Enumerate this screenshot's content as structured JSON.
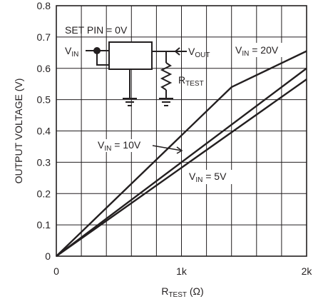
{
  "chart_data": {
    "type": "line",
    "title": "",
    "xlabel": {
      "main": "R",
      "sub": "TEST",
      "unit": " (Ω)"
    },
    "ylabel": "OUTPUT VOLTAGE (V)",
    "xlim": [
      0,
      2000
    ],
    "ylim": [
      0,
      0.8
    ],
    "grid": true,
    "x_ticks": [
      {
        "value": 0,
        "label": "0"
      },
      {
        "value": 1000,
        "label": "1k"
      },
      {
        "value": 2000,
        "label": "2k"
      }
    ],
    "y_ticks": [
      {
        "value": 0,
        "label": "0"
      },
      {
        "value": 0.1,
        "label": "0.1"
      },
      {
        "value": 0.2,
        "label": "0.2"
      },
      {
        "value": 0.3,
        "label": "0.3"
      },
      {
        "value": 0.4,
        "label": "0.4"
      },
      {
        "value": 0.5,
        "label": "0.5"
      },
      {
        "value": 0.6,
        "label": "0.6"
      },
      {
        "value": 0.7,
        "label": "0.7"
      },
      {
        "value": 0.8,
        "label": "0.8"
      }
    ],
    "series": [
      {
        "id": "vin20",
        "x": [
          0,
          1400,
          2000
        ],
        "y": [
          0,
          0.54,
          0.655
        ]
      },
      {
        "id": "vin10",
        "x": [
          0,
          2000
        ],
        "y": [
          0,
          0.6
        ]
      },
      {
        "id": "vin5",
        "x": [
          0,
          2000
        ],
        "y": [
          0,
          0.565
        ]
      }
    ],
    "annotations": {
      "vin20": {
        "pre": "V",
        "sub": "IN",
        "post": " = 20V"
      },
      "vin10": {
        "pre": "V",
        "sub": "IN",
        "post": " = 10V"
      },
      "vin5": {
        "pre": "V",
        "sub": "IN",
        "post": " = 5V"
      }
    },
    "inset": {
      "set_pin": "SET PIN = 0V",
      "vin": {
        "pre": "V",
        "sub": "IN"
      },
      "vout": {
        "pre": "V",
        "sub": "OUT"
      },
      "rtest": {
        "pre": "R",
        "sub": "TEST"
      }
    },
    "colors": {
      "line": "#231f20",
      "grid": "#231f20"
    }
  }
}
